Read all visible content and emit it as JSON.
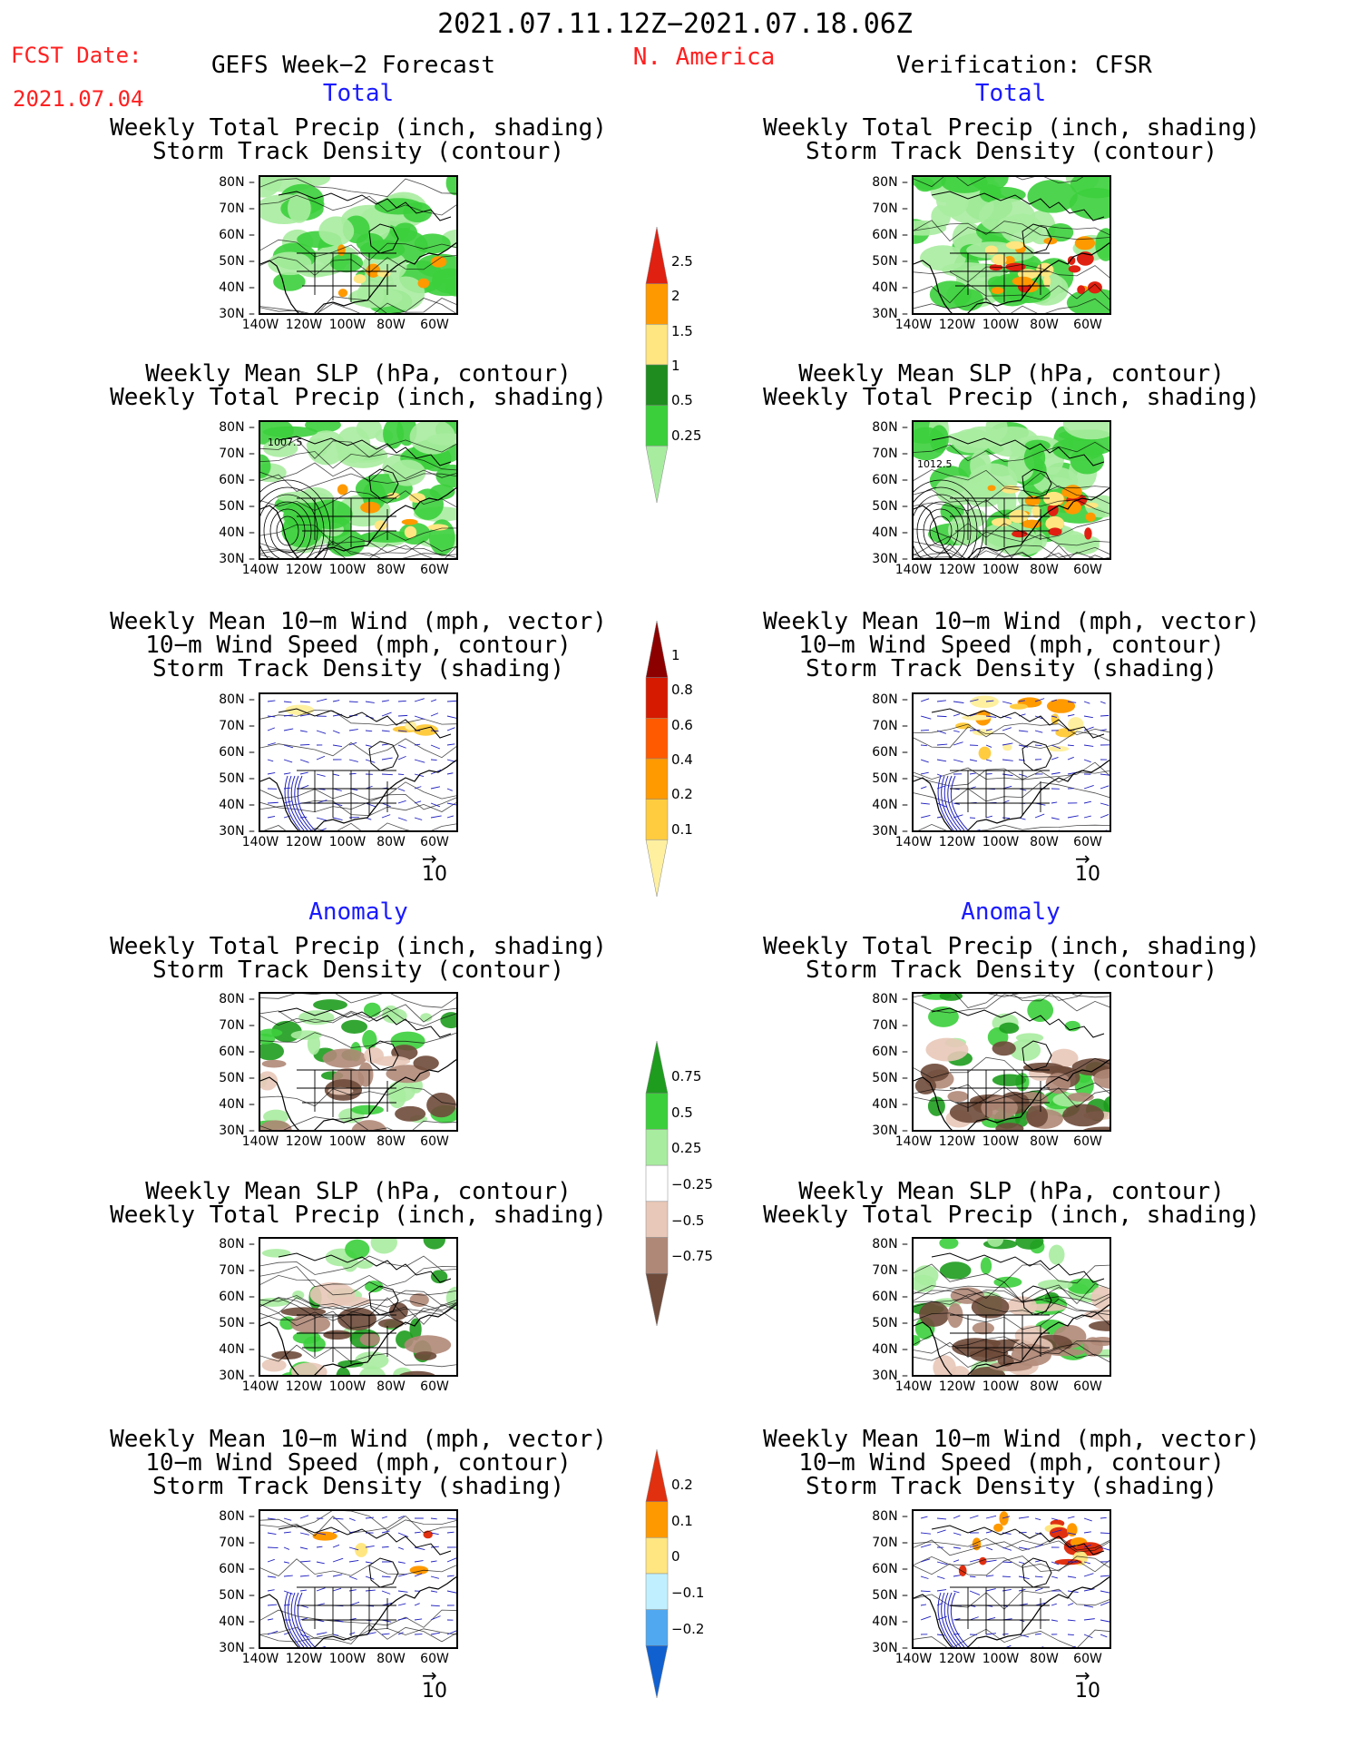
{
  "header": {
    "date_range": "2021.07.11.12Z−2021.07.18.06Z",
    "fcst_label": "FCST Date:",
    "fcst_date": "2021.07.04",
    "model_title": "GEFS Week−2 Forecast",
    "region": "N. America",
    "verification": "Verification: CFSR"
  },
  "sections": {
    "total": "Total",
    "anomaly": "Anomaly"
  },
  "panel_titles": {
    "precip_track": [
      "Weekly Total Precip (inch, shading)",
      "Storm Track Density (contour)"
    ],
    "slp_precip": [
      "Weekly Mean SLP (hPa, contour)",
      "Weekly Total Precip (inch, shading)"
    ],
    "wind_track": [
      "Weekly Mean 10−m Wind (mph, vector)",
      "10−m Wind Speed (mph, contour)",
      "Storm Track Density (shading)"
    ]
  },
  "map_axes": {
    "lat_labels": [
      "80N",
      "70N",
      "60N",
      "50N",
      "40N",
      "30N"
    ],
    "lon_labels": [
      "140W",
      "120W",
      "100W",
      "80W",
      "60W"
    ]
  },
  "contour_labels": {
    "forecast_slp": "1007.5",
    "cfsr_slp": "1012.5"
  },
  "vector_ref": "10",
  "colorbars": [
    {
      "id": "precip_total",
      "labels": [
        "2.5",
        "2",
        "1.5",
        "1",
        "0.5",
        "0.25"
      ],
      "colors": [
        "#e02010",
        "#ff9900",
        "#ffe680",
        "#1e8c1e",
        "#3ccf3c",
        "#a8eca0"
      ]
    },
    {
      "id": "track_total",
      "labels": [
        "1",
        "0.8",
        "0.6",
        "0.4",
        "0.2",
        "0.1"
      ],
      "colors": [
        "#8c0000",
        "#d51a00",
        "#ff5a00",
        "#ff9a00",
        "#ffcc40",
        "#fff0a0"
      ]
    },
    {
      "id": "precip_anom",
      "labels": [
        "0.75",
        "0.5",
        "0.25",
        "−0.25",
        "−0.5",
        "−0.75"
      ],
      "colors": [
        "#1e9c1e",
        "#3ccf3c",
        "#a8eca0",
        "#ffffff",
        "#e8c8b8",
        "#b08878",
        "#6e4a3a"
      ]
    },
    {
      "id": "track_anom",
      "labels": [
        "0.2",
        "0.1",
        "0",
        "−0.1",
        "−0.2"
      ],
      "colors": [
        "#e03010",
        "#ff9900",
        "#ffe680",
        "#c0f0ff",
        "#50a8f0",
        "#1060d0"
      ]
    }
  ]
}
